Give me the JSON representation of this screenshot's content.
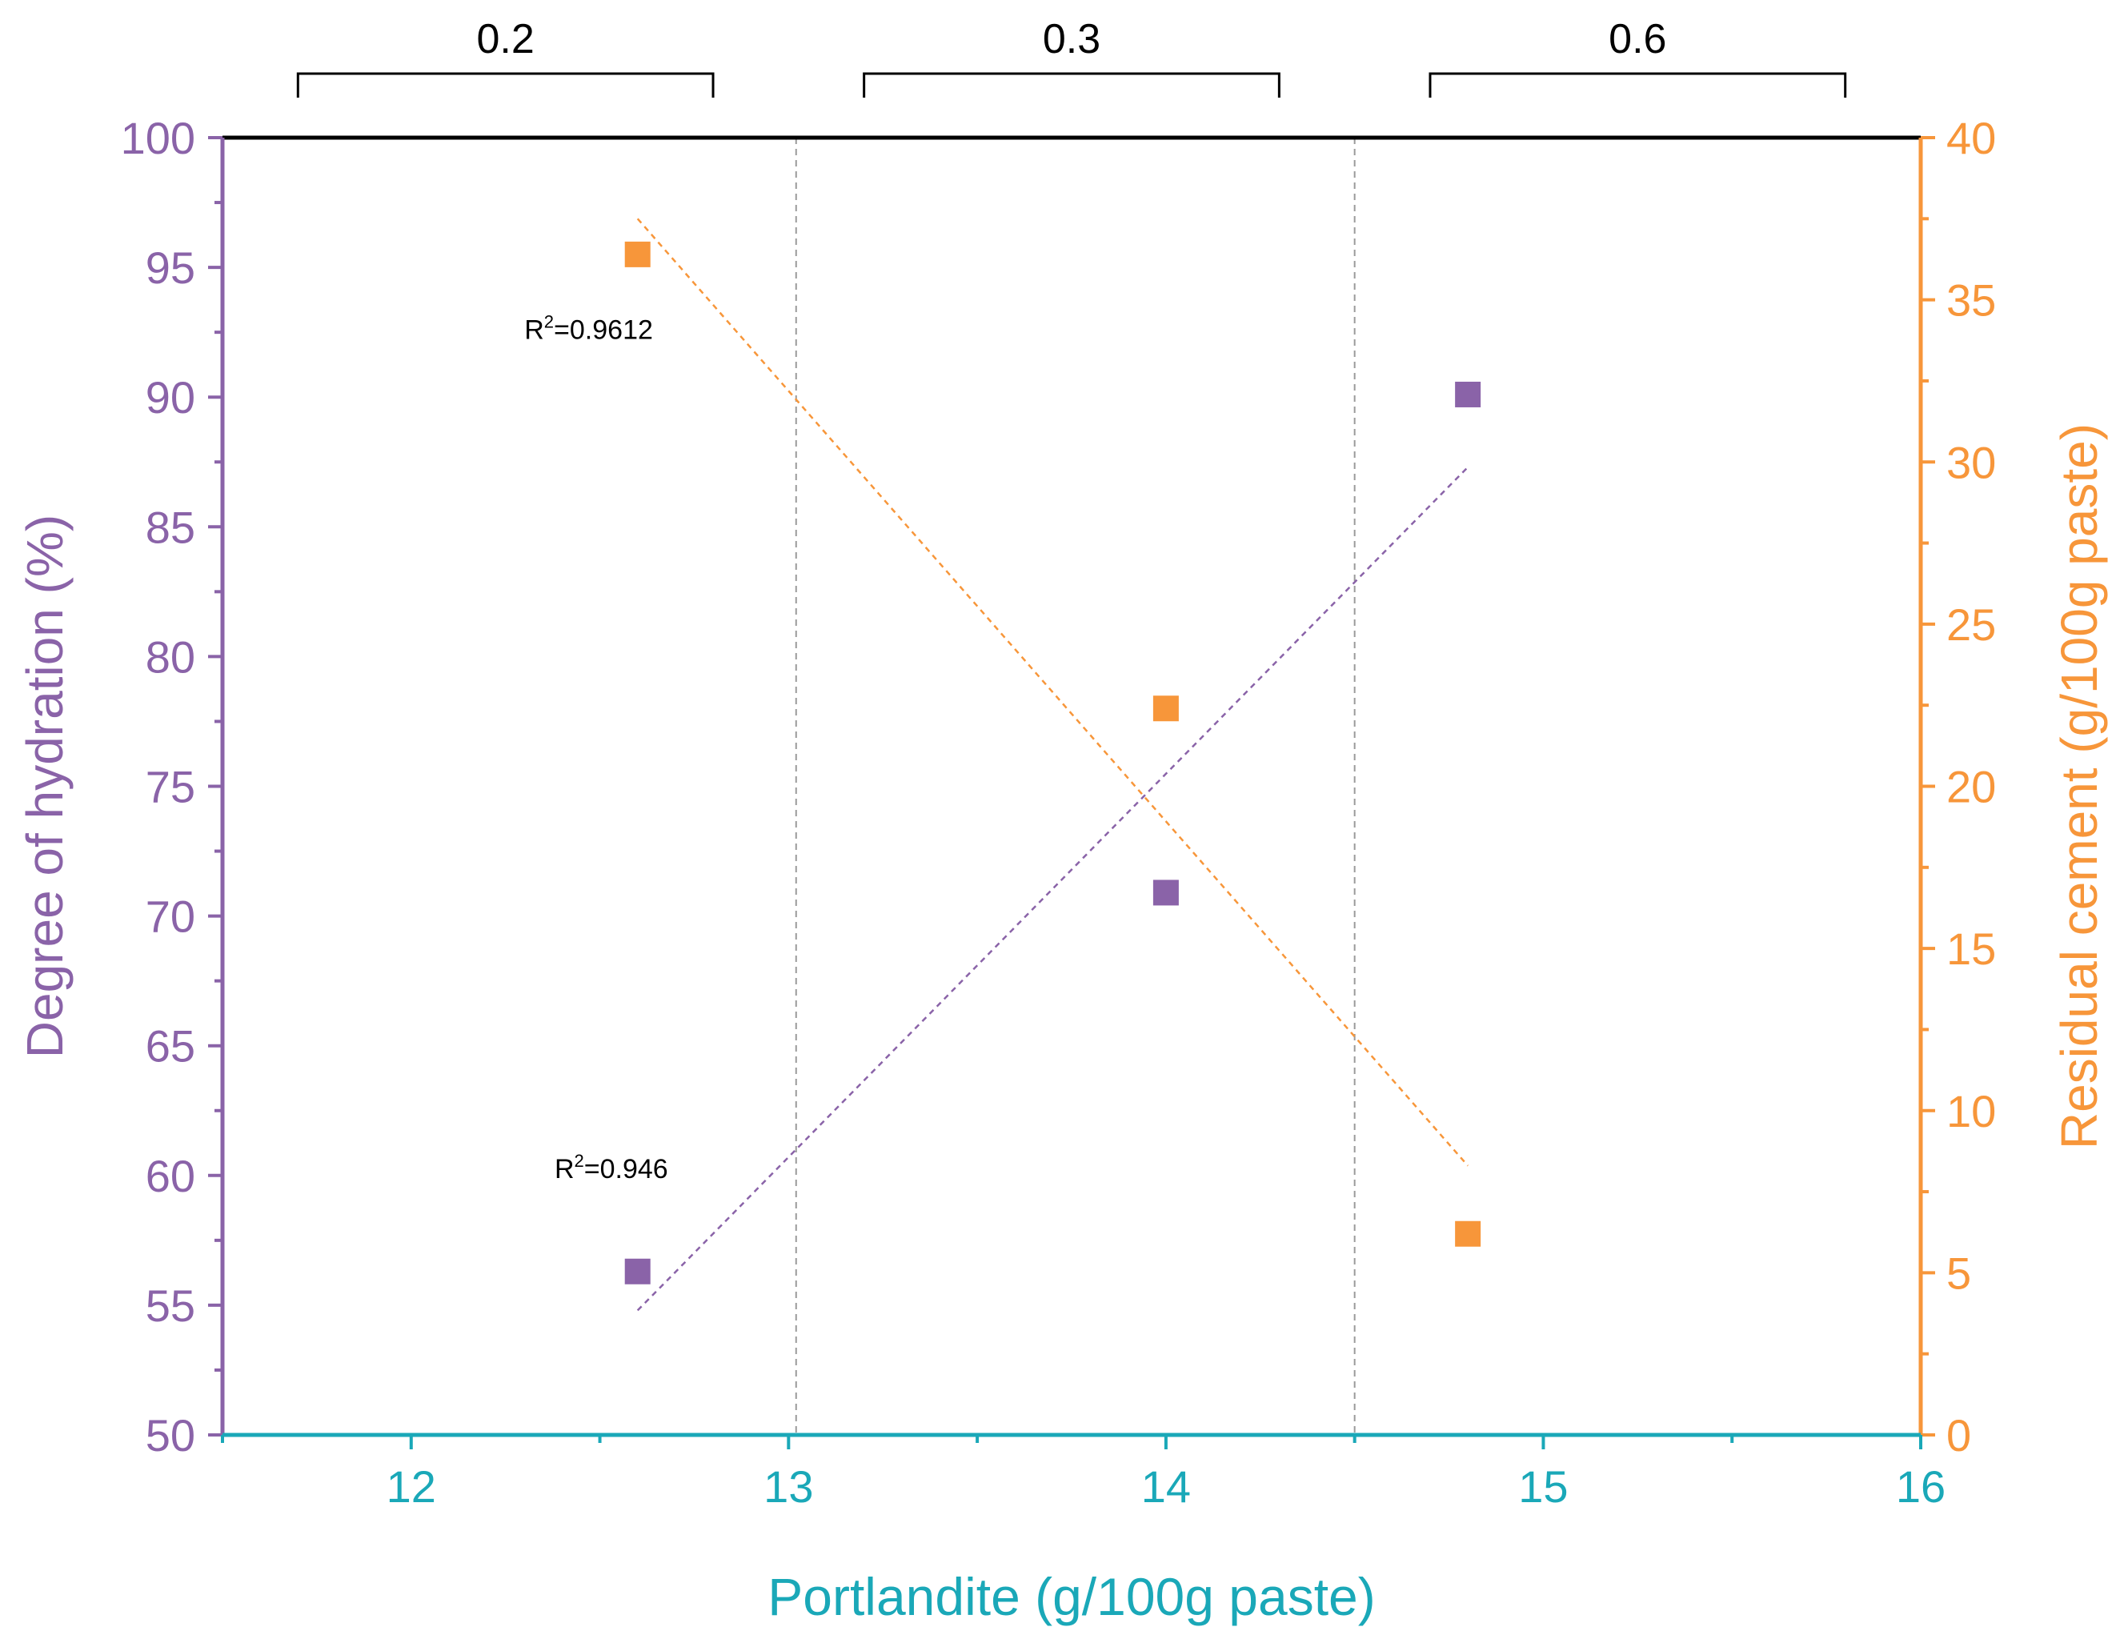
{
  "chart_data": {
    "type": "scatter",
    "x_axis": {
      "label": "Portlandite (g/100g paste)",
      "range": [
        11.5,
        16
      ],
      "ticks": [
        12,
        13,
        14,
        15,
        16
      ],
      "color": "#1aa8b8"
    },
    "y_axis_left": {
      "label": "Degree of hydration (%)",
      "range": [
        50,
        100
      ],
      "ticks": [
        50,
        55,
        60,
        65,
        70,
        75,
        80,
        85,
        90,
        95,
        100
      ],
      "color": "#8a63a8"
    },
    "y_axis_right": {
      "label": "Residual cement (g/100g paste)",
      "range": [
        0,
        40
      ],
      "ticks": [
        0,
        5,
        10,
        15,
        20,
        25,
        30,
        35,
        40
      ],
      "color": "#f7963a"
    },
    "series": [
      {
        "name": "Degree of hydration",
        "axis": "left",
        "color": "#8a63a8",
        "points": [
          {
            "x": 12.6,
            "y": 56.3
          },
          {
            "x": 14.0,
            "y": 70.9
          },
          {
            "x": 14.8,
            "y": 90.1
          }
        ],
        "trendline": {
          "x": [
            12.6,
            14.8
          ],
          "y": [
            54.8,
            87.3
          ]
        },
        "r2_label": {
          "base": "R",
          "sup": "2",
          "value": "=0.946",
          "anchor": {
            "x": 12.38,
            "y": 59.9
          }
        }
      },
      {
        "name": "Residual cement",
        "axis": "right",
        "color": "#f7963a",
        "points": [
          {
            "x": 12.6,
            "y": 36.4
          },
          {
            "x": 14.0,
            "y": 22.4
          },
          {
            "x": 14.8,
            "y": 6.2
          }
        ],
        "trendline": {
          "x": [
            12.6,
            14.8
          ],
          "y": [
            37.5,
            8.3
          ]
        },
        "r2_label": {
          "base": "R",
          "sup": "2",
          "value": "=0.9612",
          "anchor": {
            "x": 12.3,
            "y": 33.8
          }
        }
      }
    ],
    "dividers_x": [
      13.02,
      14.5
    ],
    "groups": [
      {
        "label": "0.2",
        "from": 11.7,
        "to": 12.8
      },
      {
        "label": "0.3",
        "from": 13.2,
        "to": 14.3
      },
      {
        "label": "0.6",
        "from": 14.7,
        "to": 15.8
      }
    ]
  }
}
